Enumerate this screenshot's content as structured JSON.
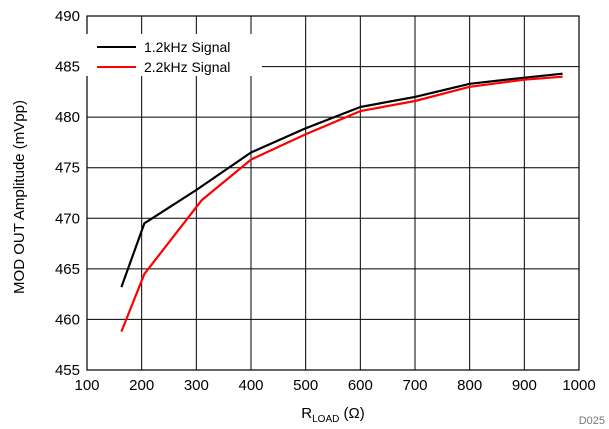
{
  "chart_data": {
    "type": "line",
    "x_axis": {
      "label_base": "R",
      "label_sub": "LOAD",
      "label_unit": " (Ω)",
      "range": [
        100,
        1000
      ],
      "ticks": [
        100,
        200,
        300,
        400,
        500,
        600,
        700,
        800,
        900,
        1000
      ]
    },
    "y_axis": {
      "label": "MOD OUT Amplitude (mVpp)",
      "range": [
        455,
        490
      ],
      "ticks": [
        455,
        460,
        465,
        470,
        475,
        480,
        485,
        490
      ]
    },
    "grid": true,
    "legend": "top-left",
    "series": [
      {
        "name": "1.2kHz Signal",
        "color": "#000000",
        "points": [
          [
            163,
            463.2
          ],
          [
            205,
            469.5
          ],
          [
            300,
            472.8
          ],
          [
            400,
            476.5
          ],
          [
            500,
            478.9
          ],
          [
            600,
            481.0
          ],
          [
            700,
            482.0
          ],
          [
            800,
            483.3
          ],
          [
            900,
            483.9
          ],
          [
            970,
            484.3
          ]
        ]
      },
      {
        "name": "2.2kHz Signal",
        "color": "#ff0000",
        "points": [
          [
            163,
            458.8
          ],
          [
            205,
            464.5
          ],
          [
            310,
            471.8
          ],
          [
            400,
            475.8
          ],
          [
            500,
            478.3
          ],
          [
            600,
            480.6
          ],
          [
            700,
            481.6
          ],
          [
            800,
            483.0
          ],
          [
            900,
            483.7
          ],
          [
            970,
            484.0
          ]
        ]
      }
    ],
    "figure_id": "D025"
  }
}
